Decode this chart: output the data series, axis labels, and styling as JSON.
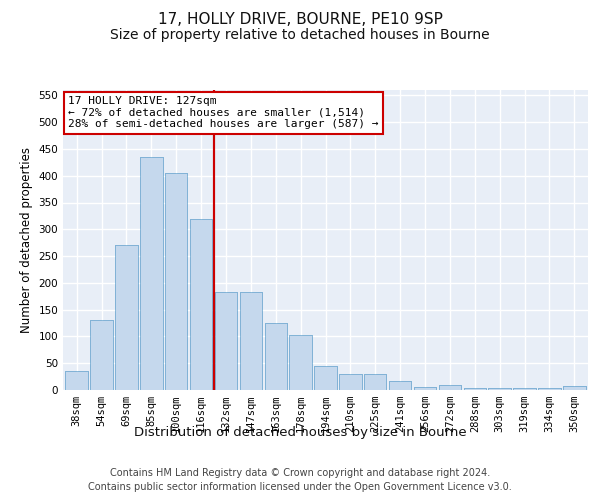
{
  "title1": "17, HOLLY DRIVE, BOURNE, PE10 9SP",
  "title2": "Size of property relative to detached houses in Bourne",
  "xlabel": "Distribution of detached houses by size in Bourne",
  "ylabel": "Number of detached properties",
  "categories": [
    "38sqm",
    "54sqm",
    "69sqm",
    "85sqm",
    "100sqm",
    "116sqm",
    "132sqm",
    "147sqm",
    "163sqm",
    "178sqm",
    "194sqm",
    "210sqm",
    "225sqm",
    "241sqm",
    "256sqm",
    "272sqm",
    "288sqm",
    "303sqm",
    "319sqm",
    "334sqm",
    "350sqm"
  ],
  "values": [
    35,
    130,
    270,
    435,
    405,
    320,
    183,
    183,
    125,
    103,
    45,
    29,
    29,
    17,
    6,
    9,
    3,
    4,
    4,
    4,
    7
  ],
  "bar_color": "#c5d8ed",
  "bar_edge_color": "#7bafd4",
  "annotation_text_line1": "17 HOLLY DRIVE: 127sqm",
  "annotation_text_line2": "← 72% of detached houses are smaller (1,514)",
  "annotation_text_line3": "28% of semi-detached houses are larger (587) →",
  "vline_color": "#cc0000",
  "annotation_box_color": "#ffffff",
  "annotation_box_edge": "#cc0000",
  "footer_line1": "Contains HM Land Registry data © Crown copyright and database right 2024.",
  "footer_line2": "Contains public sector information licensed under the Open Government Licence v3.0.",
  "ylim": [
    0,
    560
  ],
  "yticks": [
    0,
    50,
    100,
    150,
    200,
    250,
    300,
    350,
    400,
    450,
    500,
    550
  ],
  "bg_color": "#e8eef7",
  "grid_color": "#ffffff",
  "fig_bg_color": "#ffffff",
  "title1_fontsize": 11,
  "title2_fontsize": 10,
  "xlabel_fontsize": 9.5,
  "ylabel_fontsize": 8.5,
  "tick_fontsize": 7.5,
  "footer_fontsize": 7,
  "annotation_fontsize": 8
}
